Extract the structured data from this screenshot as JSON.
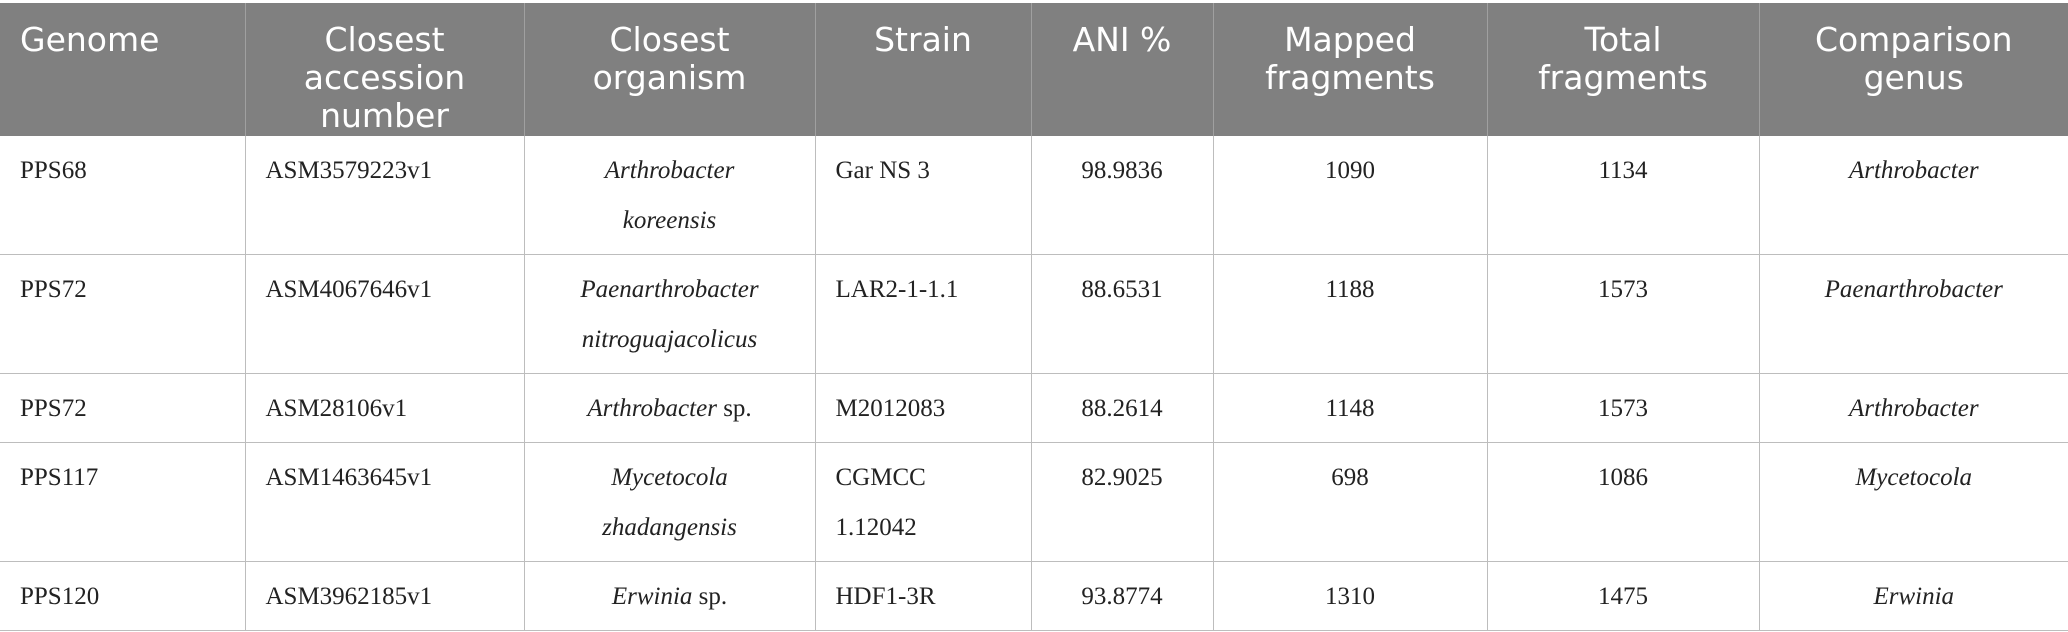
{
  "table": {
    "headers": [
      "Genome",
      "Closest accession number",
      "Closest organism",
      "Strain",
      "ANI %",
      "Mapped fragments",
      "Total fragments",
      "Comparison genus"
    ],
    "rows": [
      {
        "genome": "PPS68",
        "accession": "ASM3579223v1",
        "organism_genus": "Arthrobacter",
        "organism_rest": "koreensis",
        "strain": "Gar NS 3",
        "ani": "98.9836",
        "mapped": "1090",
        "total": "1134",
        "comparison_genus": "Arthrobacter"
      },
      {
        "genome": "PPS72",
        "accession": "ASM4067646v1",
        "organism_genus": "Paenarthrobacter",
        "organism_rest": "nitroguajacolicus",
        "strain": "LAR2-1-1.1",
        "ani": "88.6531",
        "mapped": "1188",
        "total": "1573",
        "comparison_genus": "Paenarthrobacter"
      },
      {
        "genome": "PPS72",
        "accession": "ASM28106v1",
        "organism_genus": "Arthrobacter",
        "organism_rest": "sp.",
        "strain": "M2012083",
        "ani": "88.2614",
        "mapped": "1148",
        "total": "1573",
        "comparison_genus": "Arthrobacter"
      },
      {
        "genome": "PPS117",
        "accession": "ASM1463645v1",
        "organism_genus": "Mycetocola",
        "organism_rest": "zhadangensis",
        "strain": "CGMCC 1.12042",
        "ani": "82.9025",
        "mapped": "698",
        "total": "1086",
        "comparison_genus": "Mycetocola"
      },
      {
        "genome": "PPS120",
        "accession": "ASM3962185v1",
        "organism_genus": "Erwinia",
        "organism_rest": "sp.",
        "strain": "HDF1-3R",
        "ani": "93.8774",
        "mapped": "1310",
        "total": "1475",
        "comparison_genus": "Erwinia"
      }
    ]
  }
}
